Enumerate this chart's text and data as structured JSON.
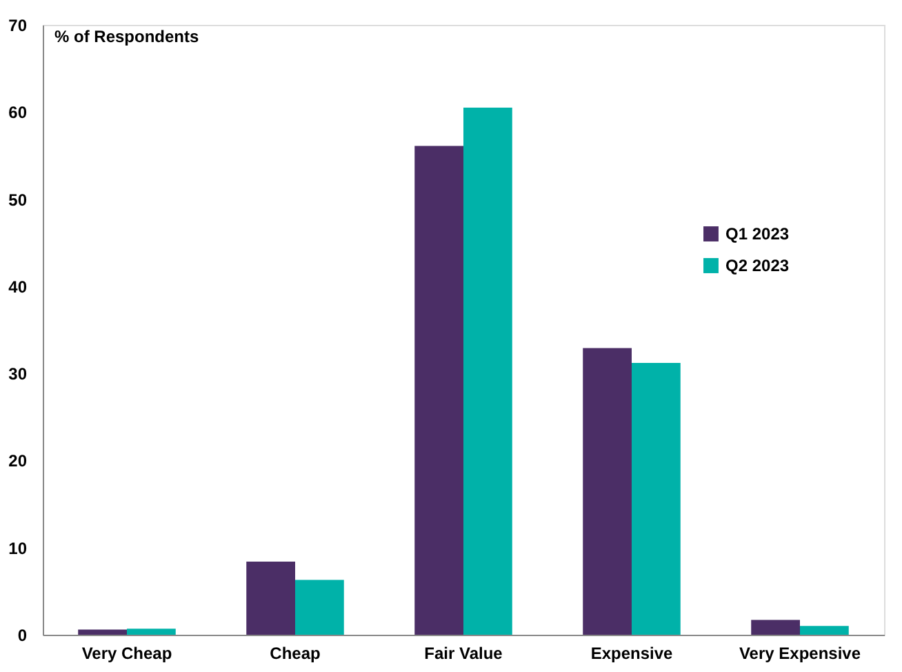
{
  "chart_data": {
    "type": "bar",
    "ylabel": "% of Respondents",
    "categories": [
      "Very Cheap",
      "Cheap",
      "Fair Value",
      "Expensive",
      "Very Expensive"
    ],
    "series": [
      {
        "name": "Q1 2023",
        "color": "#4b2e66",
        "values": [
          0.6,
          8.4,
          56.1,
          32.9,
          1.7
        ]
      },
      {
        "name": "Q2 2023",
        "color": "#00b2a9",
        "values": [
          0.7,
          6.3,
          60.5,
          31.2,
          1.0
        ]
      }
    ],
    "ylim": [
      0,
      70
    ],
    "yticks": [
      0,
      10,
      20,
      30,
      40,
      50,
      60,
      70
    ],
    "grid": false,
    "legend": "right"
  }
}
